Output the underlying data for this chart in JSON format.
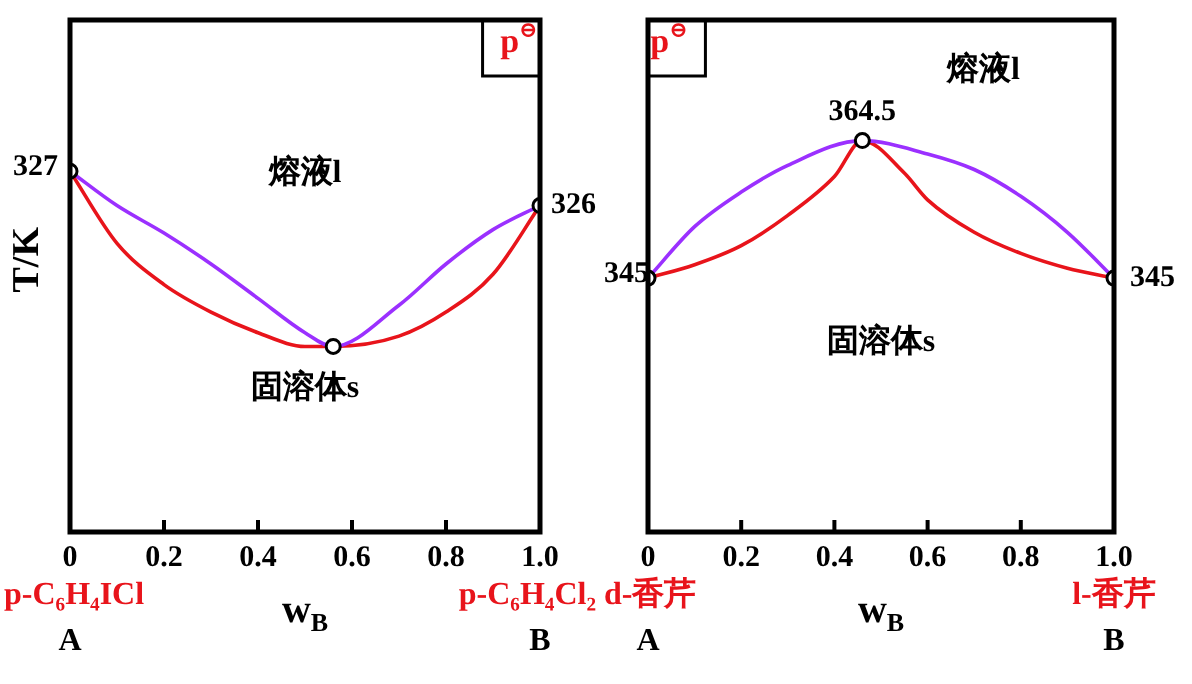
{
  "chart_data": [
    {
      "type": "line",
      "ylabel": "T/K",
      "xlabel": "w$_{B}$",
      "xlim": [
        0,
        1
      ],
      "xticks": [
        0,
        0.2,
        0.4,
        0.6,
        0.8,
        {
          "value": 1,
          "label": "1.0"
        }
      ],
      "ylim": [
        316.5,
        331.4
      ],
      "tick_labels": "x",
      "grid": false,
      "legend": false,
      "line_style": "solid",
      "marker": "none",
      "series": [
        {
          "color": "#9b30ff",
          "x": [
            0,
            0.1,
            0.2,
            0.3,
            0.4,
            0.5,
            0.56,
            0.7,
            0.8,
            0.9,
            1
          ],
          "values": [
            327,
            326,
            325.2,
            324.3,
            323.3,
            322.3,
            321.9,
            323.1,
            324.3,
            325.3,
            326
          ]
        },
        {
          "color": "#e8141b",
          "x": [
            0,
            0.1,
            0.2,
            0.3,
            0.4,
            0.5,
            0.56,
            0.7,
            0.8,
            0.9,
            1
          ],
          "values": [
            327,
            324.9,
            323.7,
            322.9,
            322.3,
            321.9,
            321.9,
            322.2,
            322.9,
            324,
            326
          ]
        },
        {
          "type": "scatter",
          "marker": "circle",
          "color": "#000000",
          "x": [
            0,
            0.56,
            1
          ],
          "values": [
            327,
            321.9,
            326
          ],
          "value_labels": [
            "327",
            null,
            "326"
          ]
        }
      ],
      "annotations": [
        "p$^{⊖}$",
        "熔液l",
        "固溶体s",
        "p-C₆H₄ICl",
        "p-C₆H₄Cl₂",
        "A",
        "B"
      ]
    },
    {
      "type": "line",
      "xlabel": "w$_{B}$",
      "xlim": [
        0,
        1
      ],
      "xticks": [
        0,
        0.2,
        0.4,
        0.6,
        0.8,
        {
          "value": 1,
          "label": "1.0"
        }
      ],
      "ylim": [
        309,
        381.6
      ],
      "tick_labels": "x",
      "grid": false,
      "legend": false,
      "line_style": "solid",
      "marker": "none",
      "series": [
        {
          "color": "#9b30ff",
          "x": [
            0,
            0.1,
            0.2,
            0.3,
            0.46,
            0.6,
            0.7,
            0.8,
            0.9,
            1
          ],
          "values": [
            345,
            352.3,
            357.2,
            361,
            364.5,
            362.6,
            360.4,
            356.6,
            351.5,
            345
          ]
        },
        {
          "color": "#e8141b",
          "x": [
            0,
            0.1,
            0.2,
            0.3,
            0.4,
            0.46,
            0.55,
            0.6,
            0.7,
            0.8,
            0.9,
            1
          ],
          "values": [
            345,
            346.9,
            349.6,
            353.9,
            359.4,
            364.5,
            359.9,
            356.1,
            351.5,
            348.5,
            346.4,
            345
          ]
        },
        {
          "type": "scatter",
          "marker": "circle",
          "color": "#000000",
          "x": [
            0,
            0.46,
            1
          ],
          "values": [
            345,
            364.5,
            345
          ],
          "value_labels": [
            "345",
            "364.5",
            "345"
          ]
        }
      ],
      "annotations": [
        "p$^{⊖}$",
        "熔液l",
        "固溶体s",
        "d-香芹",
        "l-香芹",
        "A",
        "B"
      ]
    }
  ]
}
